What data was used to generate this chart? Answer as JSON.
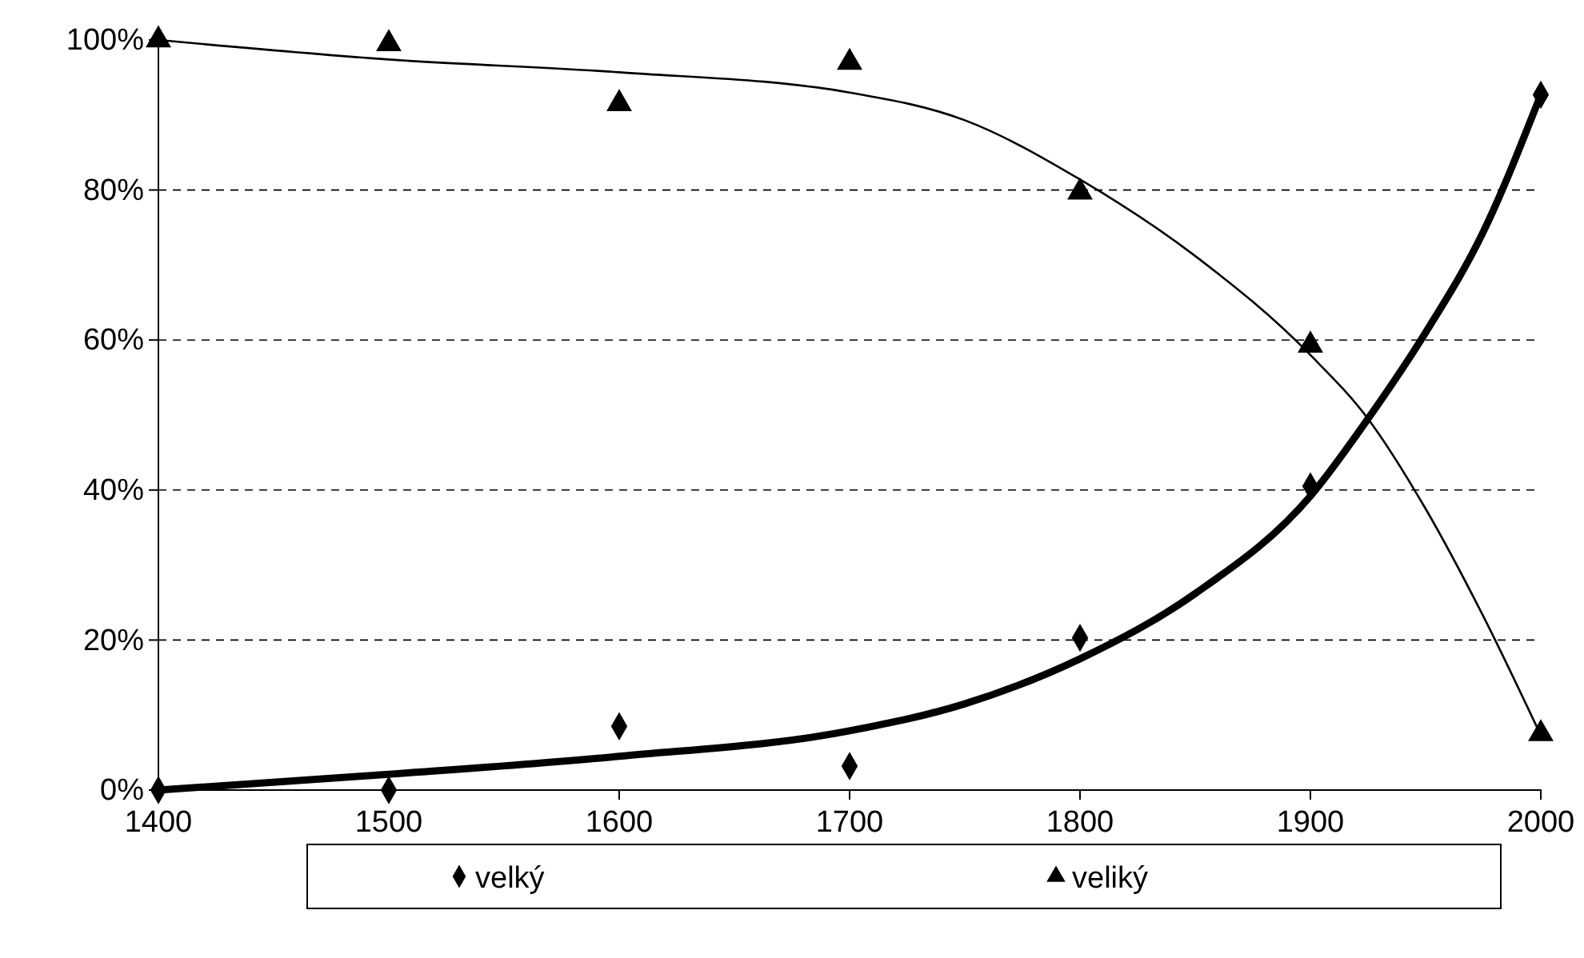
{
  "chart_data": {
    "type": "scatter",
    "x": [
      1400,
      1500,
      1600,
      1700,
      1800,
      1900,
      2000
    ],
    "series": [
      {
        "name": "velký",
        "color": "#000000",
        "marker": "diamond",
        "values": [
          0,
          0,
          8.5,
          3.2,
          20.3,
          40.5,
          92.7
        ]
      },
      {
        "name": "veliký",
        "color": "#000000",
        "marker": "triangle",
        "values": [
          100,
          99.5,
          91.5,
          97,
          79.7,
          59.3,
          7.5
        ]
      },
      {
        "type": "line",
        "color": "#000000",
        "marker": "none",
        "x": [
          1400,
          1500,
          1600,
          1700,
          1750,
          1800,
          1850,
          1900,
          1925,
          1950,
          1975,
          2000
        ],
        "values": [
          0,
          2.1,
          4.5,
          7.9,
          11.5,
          17.5,
          26.2,
          39.2,
          49.5,
          61,
          74.4,
          92.7
        ]
      },
      {
        "type": "line",
        "color": "#000000",
        "marker": "none",
        "x": [
          1400,
          1500,
          1600,
          1700,
          1750,
          1800,
          1850,
          1900,
          1925,
          1950,
          1975,
          2000
        ],
        "values": [
          100,
          97.4,
          95.7,
          93,
          89.3,
          81.4,
          71.2,
          58,
          49.5,
          37.5,
          23.2,
          7.3
        ]
      }
    ],
    "xlim": [
      1400,
      2000
    ],
    "xticks": [
      1400,
      1500,
      1600,
      1700,
      1800,
      1900,
      2000
    ],
    "ylim": [
      0,
      100
    ],
    "yticks": [
      {
        "value": 0,
        "label": "0%"
      },
      {
        "value": 20,
        "label": "20%"
      },
      {
        "value": 40,
        "label": "40%"
      },
      {
        "value": 60,
        "label": "60%"
      },
      {
        "value": 80,
        "label": "80%"
      },
      {
        "value": 100,
        "label": "100%"
      }
    ],
    "grid": "y",
    "legend": "bottom"
  }
}
